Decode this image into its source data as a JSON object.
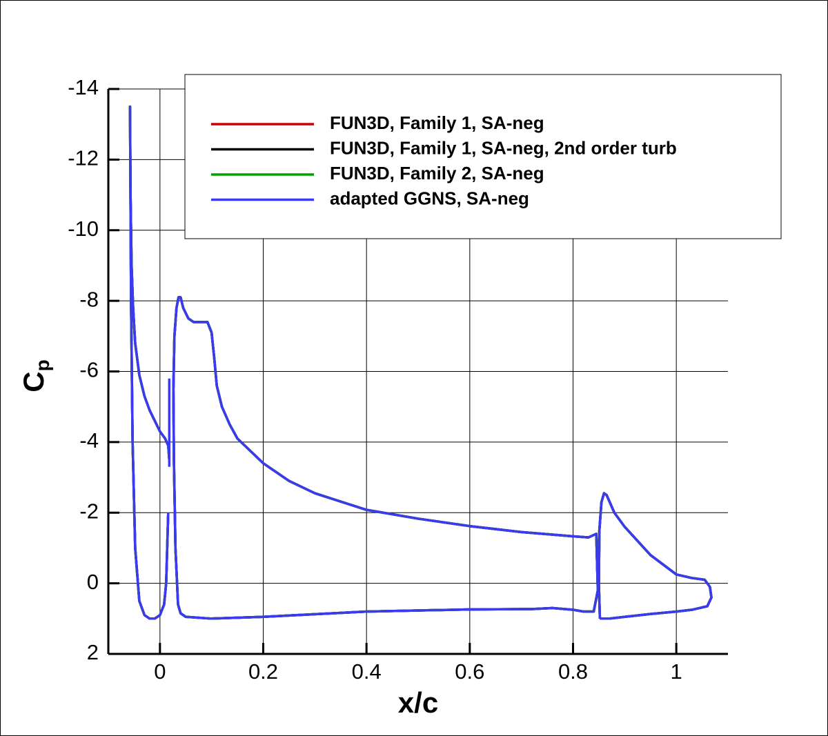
{
  "chart_data": {
    "type": "line",
    "xlabel": "x/c",
    "ylabel": "C",
    "ylabel_subscript": "p",
    "xlim": [
      -0.1,
      1.1
    ],
    "xticks": [
      0,
      0.2,
      0.4,
      0.6,
      0.8,
      1
    ],
    "ylim": [
      2,
      -14
    ],
    "yticks": [
      2,
      0,
      -2,
      -4,
      -6,
      -8,
      -10,
      -12,
      -14
    ],
    "grid": true,
    "legend": "top-right",
    "x": [
      0.016,
      0.012,
      0.008,
      0.0,
      -0.01,
      -0.02,
      -0.03,
      -0.04,
      -0.048,
      -0.053,
      -0.056,
      -0.058,
      -0.057,
      -0.055,
      -0.052,
      -0.048,
      -0.04,
      -0.03,
      -0.02,
      -0.01,
      0.0,
      0.01,
      0.016,
      0.018,
      null,
      0.018,
      0.018,
      null,
      0.035,
      0.03,
      0.027,
      0.026,
      0.028,
      0.032,
      0.036,
      0.04,
      0.045,
      0.055,
      0.065,
      0.08,
      0.092,
      0.1,
      0.105,
      0.11,
      0.12,
      0.135,
      0.15,
      0.2,
      0.25,
      0.3,
      0.4,
      0.5,
      0.6,
      0.7,
      0.8,
      0.83,
      0.845,
      0.848,
      0.84,
      0.82,
      0.8,
      0.76,
      0.72,
      0.6,
      0.4,
      0.2,
      0.1,
      0.05,
      0.04,
      0.035,
      null,
      0.852,
      0.85,
      0.851,
      0.855,
      0.86,
      0.865,
      0.88,
      0.9,
      0.95,
      1.0,
      1.03,
      1.055,
      1.065,
      1.068,
      1.06,
      1.03,
      1.0,
      0.95,
      0.9,
      0.87,
      0.856,
      0.852
    ],
    "series": [
      {
        "name": "FUN3D, Family 1, SA-neg",
        "color": "#cc0000",
        "values": [
          -2.0,
          0.0,
          0.6,
          0.9,
          1.0,
          1.0,
          0.9,
          0.5,
          -1.0,
          -4.0,
          -8.0,
          -13.5,
          -11.0,
          -9.0,
          -7.8,
          -6.8,
          -5.9,
          -5.3,
          -4.9,
          -4.6,
          -4.3,
          -4.1,
          -3.9,
          -3.5,
          null,
          null,
          null,
          null,
          0.6,
          -1.0,
          -3.5,
          -5.5,
          -7.0,
          -7.8,
          -8.1,
          -8.1,
          -7.8,
          -7.5,
          -7.4,
          -7.4,
          -7.4,
          -7.1,
          -6.4,
          -5.6,
          -5.0,
          -4.5,
          -4.1,
          -3.4,
          -2.9,
          -2.55,
          -2.08,
          -1.83,
          -1.62,
          -1.45,
          -1.33,
          -1.3,
          -1.4,
          0.2,
          0.8,
          0.8,
          0.75,
          0.7,
          0.73,
          0.74,
          0.8,
          0.95,
          1.0,
          0.95,
          0.85,
          0.6,
          null,
          1.0,
          0.0,
          -1.5,
          -2.3,
          -2.55,
          -2.5,
          -2.0,
          -1.6,
          -0.8,
          -0.25,
          -0.15,
          -0.1,
          0.1,
          0.4,
          0.65,
          0.75,
          0.8,
          0.87,
          0.95,
          1.0,
          1.0,
          1.0
        ]
      },
      {
        "name": "FUN3D, Family 1, SA-neg, 2nd order turb",
        "color": "#000000",
        "values": [
          -2.0,
          0.0,
          0.6,
          0.9,
          1.0,
          1.0,
          0.9,
          0.5,
          -1.0,
          -4.0,
          -8.0,
          -13.5,
          -11.0,
          -9.0,
          -7.8,
          -6.8,
          -5.9,
          -5.3,
          -4.9,
          -4.6,
          -4.3,
          -4.1,
          -3.9,
          -3.5,
          null,
          null,
          null,
          null,
          0.6,
          -1.0,
          -3.5,
          -5.5,
          -7.0,
          -7.8,
          -8.1,
          -8.1,
          -7.8,
          -7.5,
          -7.4,
          -7.4,
          -7.4,
          -7.1,
          -6.4,
          -5.6,
          -5.0,
          -4.5,
          -4.1,
          -3.4,
          -2.9,
          -2.55,
          -2.08,
          -1.83,
          -1.62,
          -1.45,
          -1.33,
          -1.3,
          -1.4,
          0.2,
          0.8,
          0.8,
          0.75,
          0.7,
          0.73,
          0.74,
          0.8,
          0.95,
          1.0,
          0.95,
          0.85,
          0.6,
          null,
          1.0,
          0.0,
          -1.5,
          -2.3,
          -2.55,
          -2.5,
          -2.0,
          -1.6,
          -0.8,
          -0.25,
          -0.15,
          -0.1,
          0.1,
          0.4,
          0.65,
          0.75,
          0.8,
          0.87,
          0.95,
          1.0,
          1.0,
          1.0
        ]
      },
      {
        "name": "FUN3D, Family 2, SA-neg",
        "color": "#00a000",
        "values": [
          -2.0,
          0.0,
          0.6,
          0.9,
          1.0,
          1.0,
          0.9,
          0.5,
          -1.0,
          -4.0,
          -8.0,
          -13.5,
          -11.0,
          -9.0,
          -7.8,
          -6.8,
          -5.9,
          -5.3,
          -4.9,
          -4.6,
          -4.3,
          -4.1,
          -3.9,
          -3.5,
          null,
          null,
          null,
          null,
          0.6,
          -1.0,
          -3.5,
          -5.5,
          -7.0,
          -7.8,
          -8.1,
          -8.1,
          -7.8,
          -7.5,
          -7.4,
          -7.4,
          -7.4,
          -7.1,
          -6.4,
          -5.6,
          -5.0,
          -4.5,
          -4.1,
          -3.4,
          -2.9,
          -2.55,
          -2.08,
          -1.83,
          -1.62,
          -1.45,
          -1.33,
          -1.3,
          -1.4,
          0.2,
          0.8,
          0.8,
          0.75,
          0.7,
          0.73,
          0.74,
          0.8,
          0.95,
          1.0,
          0.95,
          0.85,
          0.6,
          null,
          1.0,
          0.0,
          -1.5,
          -2.3,
          -2.55,
          -2.5,
          -2.0,
          -1.6,
          -0.8,
          -0.25,
          -0.15,
          -0.1,
          0.1,
          0.4,
          0.65,
          0.75,
          0.8,
          0.87,
          0.95,
          1.0,
          1.0,
          1.0
        ]
      },
      {
        "name": "adapted GGNS, SA-neg",
        "color": "#3a3af0",
        "values": [
          -2.0,
          0.0,
          0.6,
          0.9,
          1.0,
          1.0,
          0.9,
          0.5,
          -1.0,
          -4.0,
          -8.0,
          -13.5,
          -11.0,
          -9.0,
          -7.8,
          -6.8,
          -5.9,
          -5.3,
          -4.9,
          -4.6,
          -4.3,
          -4.1,
          -3.9,
          -3.5,
          null,
          -3.3,
          -5.8,
          null,
          0.6,
          -1.0,
          -3.5,
          -5.5,
          -7.0,
          -7.8,
          -8.1,
          -8.1,
          -7.8,
          -7.5,
          -7.4,
          -7.4,
          -7.4,
          -7.1,
          -6.4,
          -5.6,
          -5.0,
          -4.5,
          -4.1,
          -3.4,
          -2.9,
          -2.55,
          -2.08,
          -1.83,
          -1.62,
          -1.45,
          -1.33,
          -1.3,
          -1.4,
          0.2,
          0.8,
          0.8,
          0.75,
          0.7,
          0.73,
          0.74,
          0.8,
          0.95,
          1.0,
          0.95,
          0.85,
          0.6,
          null,
          1.0,
          0.0,
          -1.5,
          -2.3,
          -2.55,
          -2.5,
          -2.0,
          -1.6,
          -0.8,
          -0.25,
          -0.15,
          -0.1,
          0.1,
          0.4,
          0.65,
          0.75,
          0.8,
          0.87,
          0.95,
          1.0,
          1.0,
          1.0
        ]
      }
    ]
  }
}
